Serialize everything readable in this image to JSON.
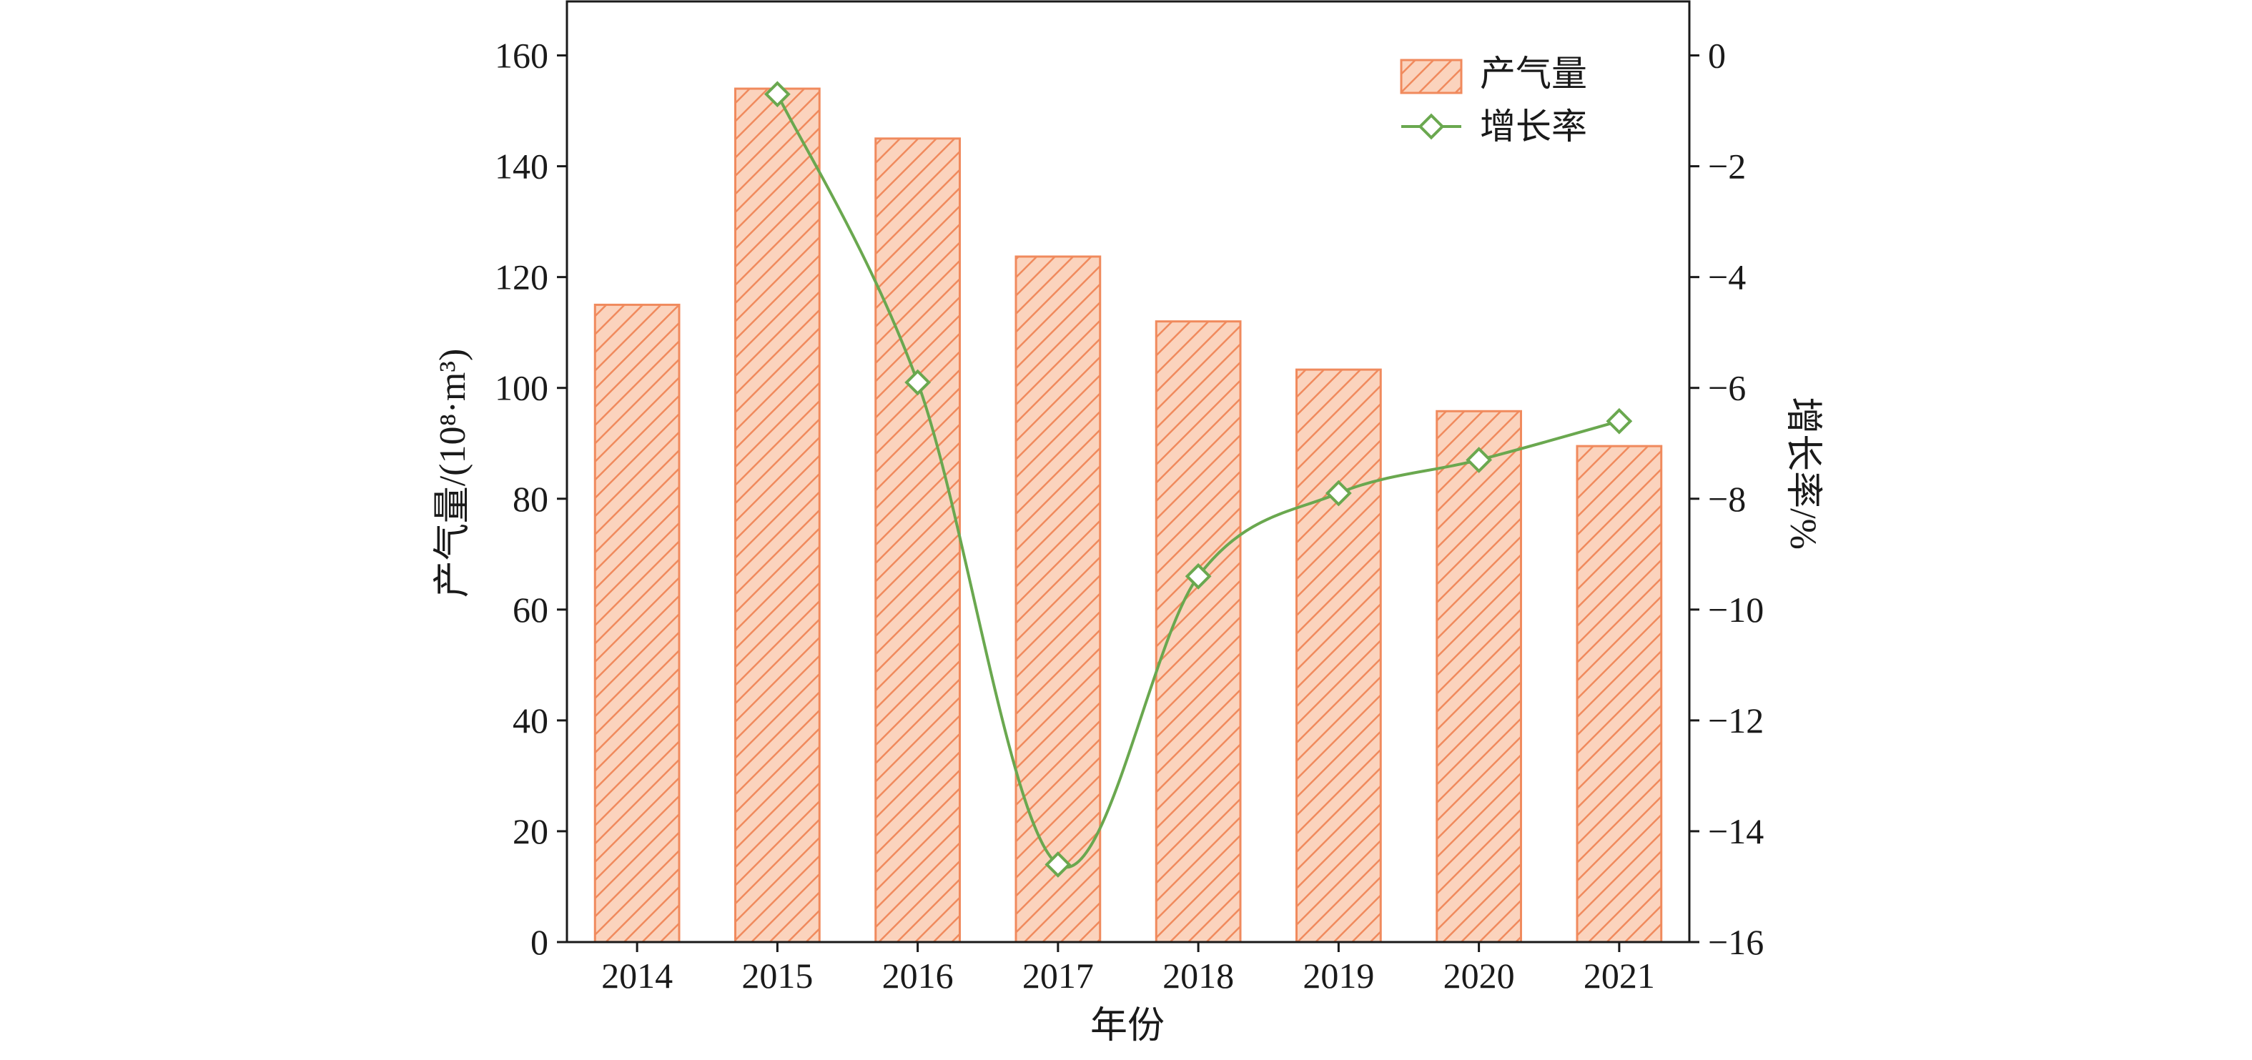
{
  "chart_data": {
    "type": "bar",
    "categories": [
      "2014",
      "2015",
      "2016",
      "2017",
      "2018",
      "2019",
      "2020",
      "2021"
    ],
    "xlabel": "年份",
    "ylabel_left": "产气量/(10⁸·m³)",
    "ylabel_right": "增长率/%",
    "ylim_left": [
      0,
      170
    ],
    "yticks_left": [
      0,
      20,
      40,
      60,
      80,
      100,
      120,
      140,
      160
    ],
    "ylim_right": [
      -16,
      1
    ],
    "yticks_right": [
      0,
      -2,
      -4,
      -6,
      -8,
      -10,
      -12,
      -14,
      -16
    ],
    "grid": false,
    "legend_position": "top-right",
    "series": [
      {
        "name": "产气量",
        "type": "bar",
        "axis": "left",
        "color": "#f08a5d",
        "fill": "#fbd3bd",
        "hatch": "diagonal",
        "values": [
          115,
          154,
          145,
          123.7,
          112,
          103.3,
          95.8,
          89.5
        ]
      },
      {
        "name": "增长率",
        "type": "line",
        "axis": "right",
        "color": "#6aa84f",
        "marker": "diamond",
        "smooth": true,
        "x": [
          "2015",
          "2016",
          "2017",
          "2018",
          "2019",
          "2020",
          "2021"
        ],
        "values": [
          -0.7,
          -5.9,
          -14.6,
          -9.4,
          -7.9,
          -7.3,
          -6.6
        ]
      }
    ]
  }
}
